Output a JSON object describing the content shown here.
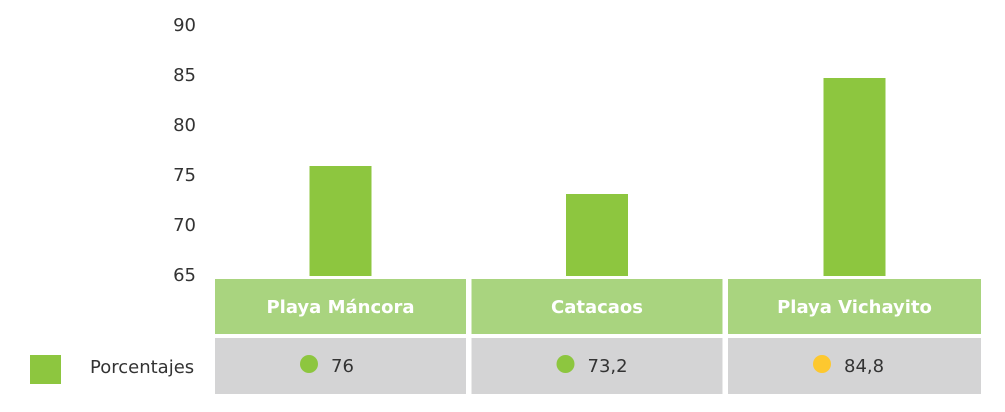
{
  "chart_data": {
    "type": "bar",
    "categories": [
      "Playa Máncora",
      "Catacaos",
      "Playa Vichayito"
    ],
    "series": [
      {
        "name": "Porcentajes",
        "color": "#8dc63f",
        "values": [
          76,
          73.2,
          84.8
        ],
        "value_labels": [
          "76",
          "73,2",
          "84,8"
        ],
        "dot_colors": [
          "#8dc63f",
          "#8dc63f",
          "#fdc82f"
        ]
      }
    ],
    "ylim": [
      65,
      90
    ],
    "yticks": [
      65,
      70,
      75,
      80,
      85,
      90
    ],
    "grid": false
  }
}
